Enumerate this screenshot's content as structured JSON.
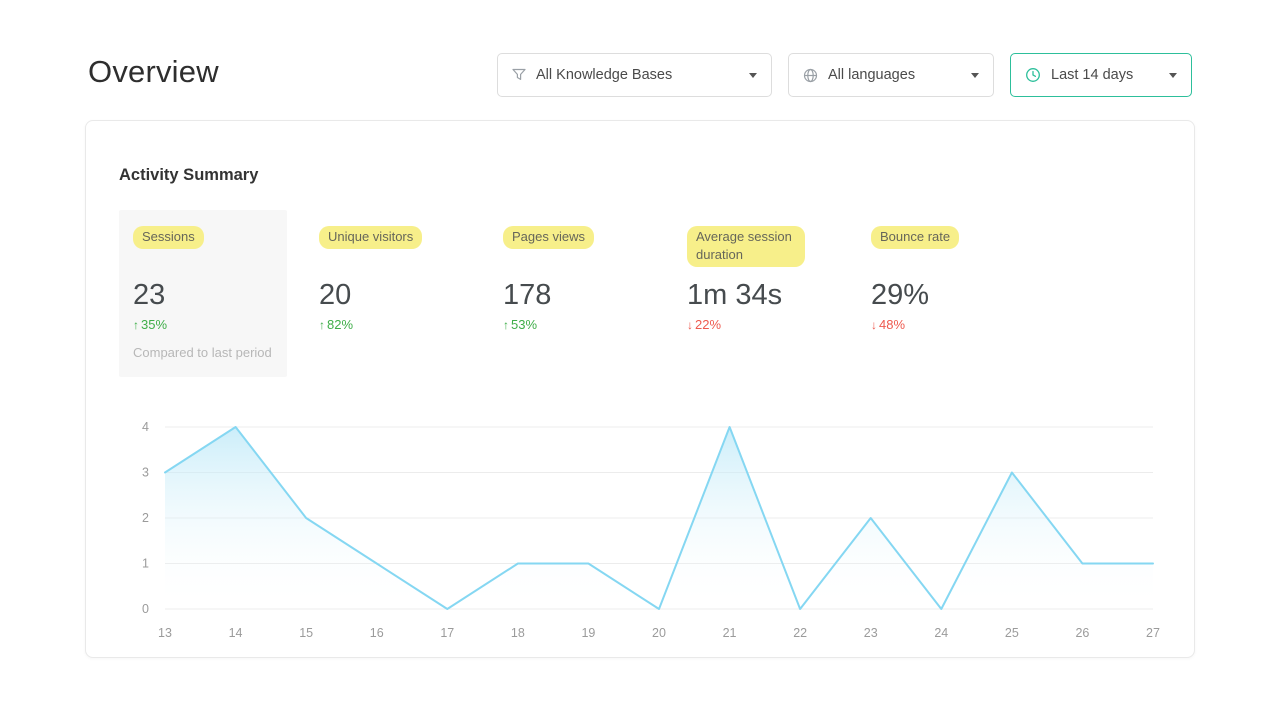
{
  "page": {
    "title": "Overview"
  },
  "filters": {
    "knowledge_bases": {
      "label": "All Knowledge Bases",
      "icon": "knowledge-bases-filter-icon"
    },
    "languages": {
      "label": "All languages",
      "icon": "globe-icon"
    },
    "date_range": {
      "label": "Last 14 days",
      "icon": "clock-icon"
    }
  },
  "card": {
    "title": "Activity Summary",
    "stats": [
      {
        "label": "Sessions",
        "value": "23",
        "delta": "35%",
        "direction": "up",
        "note": "Compared to last period"
      },
      {
        "label": "Unique visitors",
        "value": "20",
        "delta": "82%",
        "direction": "up"
      },
      {
        "label": "Pages views",
        "value": "178",
        "delta": "53%",
        "direction": "up"
      },
      {
        "label": "Average session duration",
        "value": "1m 34s",
        "delta": "22%",
        "direction": "down"
      },
      {
        "label": "Bounce rate",
        "value": "29%",
        "delta": "48%",
        "direction": "down"
      }
    ]
  },
  "chart_data": {
    "type": "area",
    "x": [
      13,
      14,
      15,
      16,
      17,
      18,
      19,
      20,
      21,
      22,
      23,
      24,
      25,
      26,
      27
    ],
    "values": [
      3,
      4,
      2,
      1,
      0,
      1,
      1,
      0,
      4,
      0,
      2,
      0,
      3,
      1,
      1
    ],
    "ylim": [
      0,
      4
    ],
    "yticks": [
      0,
      1,
      2,
      3,
      4
    ],
    "grid": true,
    "legend": false,
    "title": "",
    "xlabel": "",
    "ylabel": "",
    "line_color": "#85d7f2",
    "fill_from": "#b5e6f7",
    "fill_to": "#ffffff",
    "grid_color": "#ececec",
    "tick_color": "#9b9b9b"
  },
  "colors": {
    "accent_teal": "#2dbf9b",
    "positive": "#3fae49",
    "negative": "#ee5a4f",
    "highlight": "#f7ef8a"
  }
}
